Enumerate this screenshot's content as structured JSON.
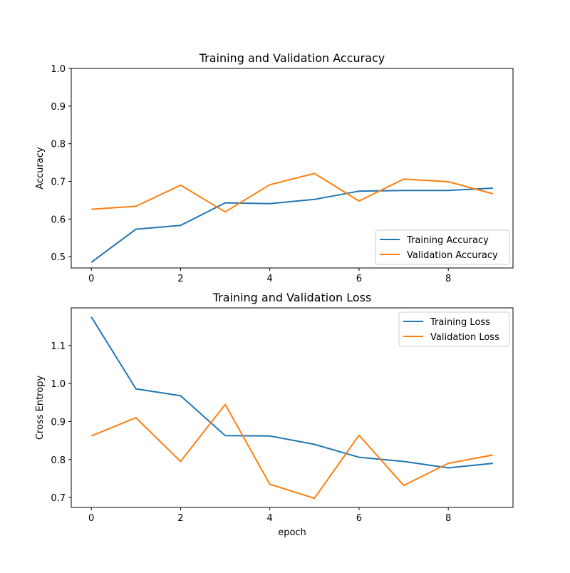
{
  "chart_data": [
    {
      "type": "line",
      "title": "Training and Validation Accuracy",
      "xlabel": "",
      "ylabel": "Accuracy",
      "x": [
        0,
        1,
        2,
        3,
        4,
        5,
        6,
        7,
        8,
        9
      ],
      "xticks": [
        0,
        2,
        4,
        6,
        8
      ],
      "yticks": [
        0.5,
        0.6,
        0.7,
        0.8,
        0.9,
        1.0
      ],
      "ytick_labels": [
        "0.5",
        "0.6",
        "0.7",
        "0.8",
        "0.9",
        "1.0"
      ],
      "xlim": [
        -0.45,
        9.45
      ],
      "ylim": [
        0.47,
        1.0
      ],
      "legend": "lower-right",
      "series": [
        {
          "name": "Training Accuracy",
          "color": "#1f77b4",
          "values": [
            0.485,
            0.573,
            0.583,
            0.643,
            0.641,
            0.652,
            0.674,
            0.676,
            0.676,
            0.682
          ]
        },
        {
          "name": "Validation Accuracy",
          "color": "#ff7f0e",
          "values": [
            0.626,
            0.634,
            0.69,
            0.619,
            0.691,
            0.721,
            0.648,
            0.706,
            0.699,
            0.667
          ]
        }
      ]
    },
    {
      "type": "line",
      "title": "Training and Validation Loss",
      "xlabel": "epoch",
      "ylabel": "Cross Entropy",
      "x": [
        0,
        1,
        2,
        3,
        4,
        5,
        6,
        7,
        8,
        9
      ],
      "xticks": [
        0,
        2,
        4,
        6,
        8
      ],
      "yticks": [
        0.7,
        0.8,
        0.9,
        1.0,
        1.1
      ],
      "ytick_labels": [
        "0.7",
        "0.8",
        "0.9",
        "1.0",
        "1.1"
      ],
      "xlim": [
        -0.45,
        9.45
      ],
      "ylim": [
        0.674,
        1.199
      ],
      "legend": "upper-right",
      "series": [
        {
          "name": "Training Loss",
          "color": "#1f77b4",
          "values": [
            1.175,
            0.986,
            0.968,
            0.863,
            0.862,
            0.84,
            0.806,
            0.795,
            0.778,
            0.79
          ]
        },
        {
          "name": "Validation Loss",
          "color": "#ff7f0e",
          "values": [
            0.862,
            0.91,
            0.795,
            0.945,
            0.735,
            0.698,
            0.864,
            0.732,
            0.79,
            0.812
          ]
        }
      ]
    }
  ]
}
